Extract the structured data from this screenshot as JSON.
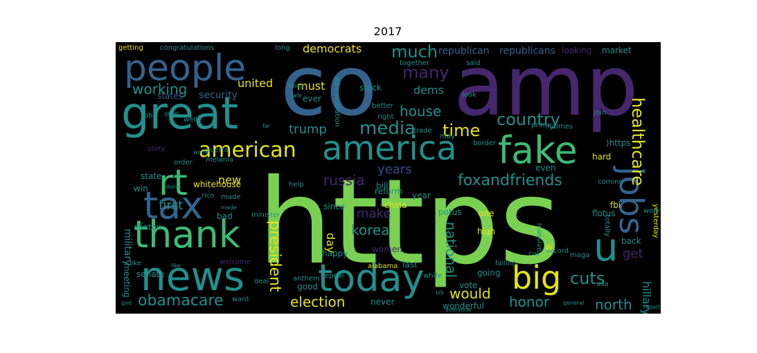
{
  "figure": {
    "title": "2017"
  },
  "colors": {
    "purple": "#46276e",
    "indigo": "#3a4a8c",
    "blue": "#33638d",
    "teal": "#21908d",
    "green": "#3cbb75",
    "lime": "#7ad151",
    "yellow": "#e5e419"
  },
  "words": [
    {
      "text": "https",
      "color": "lime"
    },
    {
      "text": "co",
      "color": "blue"
    },
    {
      "text": "amp",
      "color": "purple"
    },
    {
      "text": "great",
      "color": "teal"
    },
    {
      "text": "people",
      "color": "blue"
    },
    {
      "text": "america",
      "color": "teal"
    },
    {
      "text": "fake",
      "color": "green"
    },
    {
      "text": "tax",
      "color": "blue"
    },
    {
      "text": "news",
      "color": "teal"
    },
    {
      "text": "today",
      "color": "teal"
    },
    {
      "text": "thank",
      "color": "green"
    },
    {
      "text": "rt",
      "color": "green"
    },
    {
      "text": "big",
      "color": "yellow"
    },
    {
      "text": "jobs",
      "color": "blue"
    },
    {
      "text": "u",
      "color": "teal"
    },
    {
      "text": "american",
      "color": "yellow"
    },
    {
      "text": "media",
      "color": "teal"
    },
    {
      "text": "country",
      "color": "teal"
    },
    {
      "text": "healthcare",
      "color": "yellow"
    },
    {
      "text": "time",
      "color": "yellow"
    },
    {
      "text": "much",
      "color": "teal"
    },
    {
      "text": "many",
      "color": "purple"
    },
    {
      "text": "foxandfriends",
      "color": "teal"
    },
    {
      "text": "russia",
      "color": "purple"
    },
    {
      "text": "korea",
      "color": "teal"
    },
    {
      "text": "president",
      "color": "yellow"
    },
    {
      "text": "obamacare",
      "color": "teal"
    },
    {
      "text": "election",
      "color": "yellow"
    },
    {
      "text": "honor",
      "color": "teal"
    },
    {
      "text": "cuts",
      "color": "teal"
    },
    {
      "text": "north",
      "color": "teal"
    },
    {
      "text": "would",
      "color": "yellow"
    },
    {
      "text": "working",
      "color": "teal"
    },
    {
      "text": "democrats",
      "color": "yellow"
    },
    {
      "text": "house",
      "color": "teal"
    },
    {
      "text": "trump",
      "color": "teal"
    },
    {
      "text": "years",
      "color": "indigo"
    },
    {
      "text": "first",
      "color": "teal"
    },
    {
      "text": "new",
      "color": "yellow"
    },
    {
      "text": "make",
      "color": "purple"
    },
    {
      "text": "national",
      "color": "teal"
    },
    {
      "text": "united",
      "color": "yellow"
    },
    {
      "text": "must",
      "color": "yellow"
    },
    {
      "text": "dems",
      "color": "teal"
    },
    {
      "text": "get",
      "color": "purple"
    },
    {
      "text": "hillary",
      "color": "teal"
    },
    {
      "text": "military",
      "color": "teal"
    },
    {
      "text": "day",
      "color": "yellow"
    },
    {
      "text": "republican",
      "color": "blue"
    },
    {
      "text": "republicans",
      "color": "blue"
    },
    {
      "text": "market",
      "color": "teal"
    },
    {
      "text": "looking",
      "color": "purple"
    },
    {
      "text": "security",
      "color": "blue"
    },
    {
      "text": "states",
      "color": "blue"
    },
    {
      "text": "stock",
      "color": "teal"
    },
    {
      "text": "ever",
      "color": "teal"
    },
    {
      "text": "together",
      "color": "teal"
    },
    {
      "text": "whitehouse",
      "color": "yellow"
    },
    {
      "text": "bill",
      "color": "teal"
    },
    {
      "text": "china",
      "color": "yellow"
    },
    {
      "text": "reform",
      "color": "teal"
    },
    {
      "text": "year",
      "color": "teal"
    },
    {
      "text": "potus",
      "color": "teal"
    },
    {
      "text": "since",
      "color": "teal"
    },
    {
      "text": "one",
      "color": "yellow"
    },
    {
      "text": "high",
      "color": "yellow"
    },
    {
      "text": "flotus",
      "color": "teal"
    },
    {
      "text": "back",
      "color": "teal"
    },
    {
      "text": "fbi",
      "color": "yellow"
    },
    {
      "text": "senate",
      "color": "teal"
    },
    {
      "text": "meeting",
      "color": "teal"
    },
    {
      "text": "clinton",
      "color": "teal"
    },
    {
      "text": "win",
      "color": "teal"
    },
    {
      "text": "state",
      "color": "teal"
    },
    {
      "text": "bad",
      "color": "teal"
    },
    {
      "text": "made",
      "color": "teal"
    },
    {
      "text": "help",
      "color": "teal"
    },
    {
      "text": "hard",
      "color": "yellow"
    },
    {
      "text": "even",
      "color": "teal"
    },
    {
      "text": "vote",
      "color": "teal"
    },
    {
      "text": "going",
      "color": "teal"
    },
    {
      "text": "good",
      "color": "teal"
    },
    {
      "text": "never",
      "color": "teal"
    },
    {
      "text": "wonderful",
      "color": "teal"
    },
    {
      "text": "last",
      "color": "teal"
    },
    {
      "text": "happy",
      "color": "teal"
    },
    {
      "text": "women",
      "color": "purple"
    },
    {
      "text": "story",
      "color": "purple"
    },
    {
      "text": "welcome",
      "color": "purple"
    },
    {
      "text": "want",
      "color": "teal"
    },
    {
      "text": "job",
      "color": "teal"
    },
    {
      "text": "failing",
      "color": "teal"
    },
    {
      "text": "alabama",
      "color": "yellow"
    },
    {
      "text": "border",
      "color": "teal"
    },
    {
      "text": "maga",
      "color": "teal"
    },
    {
      "text": "record",
      "color": "teal"
    },
    {
      "text": "w",
      "color": "yellow"
    },
    {
      "text": "cut",
      "color": "teal"
    },
    {
      "text": "massive",
      "color": "teal"
    },
    {
      "text": "getting",
      "color": "yellow"
    },
    {
      "text": "congratulations",
      "color": "teal"
    },
    {
      "text": "long",
      "color": "teal"
    },
    {
      "text": "prime",
      "color": "teal"
    },
    {
      "text": "nytimes",
      "color": "teal"
    },
    {
      "text": "said",
      "color": "teal"
    },
    {
      "text": "look",
      "color": "teal"
    },
    {
      "text": "join",
      "color": "teal"
    },
    {
      "text": "order",
      "color": "teal"
    },
    {
      "text": "melania",
      "color": "teal"
    },
    {
      "text": "world",
      "color": "teal"
    },
    {
      "text": "puerto",
      "color": "teal"
    },
    {
      "text": "rico",
      "color": "teal"
    },
    {
      "text": "minister",
      "color": "teal"
    },
    {
      "text": "like",
      "color": "teal"
    },
    {
      "text": "like",
      "color": "teal"
    },
    {
      "text": "usa",
      "color": "teal"
    },
    {
      "text": "yesterday",
      "color": "yellow"
    },
    {
      "text": "administration",
      "color": "teal"
    },
    {
      "text": "anthem",
      "color": "teal"
    },
    {
      "text": "white",
      "color": "teal"
    },
    {
      "text": "deal",
      "color": "teal"
    },
    {
      "text": "well",
      "color": "teal"
    },
    {
      "text": "us",
      "color": "teal"
    },
    {
      "text": "coming",
      "color": "teal"
    },
    {
      "text": "work",
      "color": "teal"
    },
    {
      "text": "totally",
      "color": "teal"
    },
    {
      "text": "repeal",
      "color": "teal"
    },
    {
      "text": "trade",
      "color": "teal"
    },
    {
      "text": "may",
      "color": "teal"
    },
    {
      "text": "better",
      "color": "teal"
    },
    {
      "text": "right",
      "color": "teal"
    },
    {
      "text": "thing",
      "color": "teal"
    },
    {
      "text": "safe",
      "color": "teal"
    },
    {
      "text": "far",
      "color": "teal"
    },
    {
      "text": "god",
      "color": "teal"
    },
    {
      "text": "general",
      "color": "teal"
    },
    {
      "text": "report",
      "color": "teal"
    },
    {
      "text": "everyone",
      "color": "teal"
    },
    {
      "text": "done",
      "color": "teal"
    },
    {
      "text": "great",
      "color": "teal"
    },
    {
      "text": "made",
      "color": "teal"
    },
    {
      "text": "⟩https",
      "color": "teal"
    }
  ]
}
